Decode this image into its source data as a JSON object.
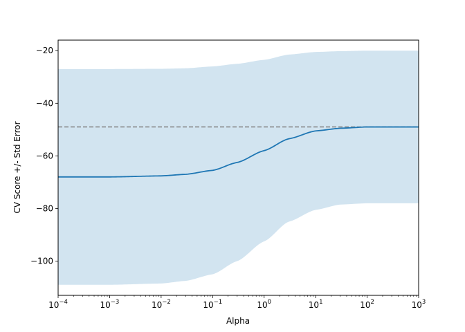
{
  "chart_data": {
    "type": "line",
    "title": "",
    "xlabel": "Alpha",
    "ylabel": "CV Score +/- Std Error",
    "xscale": "log",
    "xlim": [
      0.0001,
      1000
    ],
    "ylim": [
      -113,
      -16
    ],
    "grid": false,
    "x_ticks": [
      {
        "value": 0.0001,
        "base": "10",
        "exp": "−4"
      },
      {
        "value": 0.001,
        "base": "10",
        "exp": "−3"
      },
      {
        "value": 0.01,
        "base": "10",
        "exp": "−2"
      },
      {
        "value": 0.1,
        "base": "10",
        "exp": "−1"
      },
      {
        "value": 1,
        "base": "10",
        "exp": "0"
      },
      {
        "value": 10,
        "base": "10",
        "exp": "1"
      },
      {
        "value": 100,
        "base": "10",
        "exp": "2"
      },
      {
        "value": 1000,
        "base": "10",
        "exp": "3"
      }
    ],
    "y_ticks": [
      {
        "value": -20,
        "label": "−20"
      },
      {
        "value": -40,
        "label": "−40"
      },
      {
        "value": -60,
        "label": "−60"
      },
      {
        "value": -80,
        "label": "−80"
      },
      {
        "value": -100,
        "label": "−100"
      }
    ],
    "series": [
      {
        "role": "mean",
        "color": "#1f77b4",
        "x": [
          0.0001,
          0.001,
          0.01,
          0.03,
          0.1,
          0.3,
          1,
          3,
          10,
          30,
          100,
          1000
        ],
        "y": [
          -68,
          -68,
          -67.6,
          -67,
          -65.5,
          -62.5,
          -58,
          -53.5,
          -50.5,
          -49.5,
          -49,
          -49
        ]
      }
    ],
    "band": {
      "role": "std-error",
      "color": "#1f77b4",
      "opacity": 0.2,
      "x": [
        0.0001,
        0.001,
        0.01,
        0.03,
        0.1,
        0.3,
        1,
        3,
        10,
        30,
        100,
        1000
      ],
      "upper": [
        -27,
        -27,
        -26.9,
        -26.7,
        -26,
        -25,
        -23.5,
        -21.5,
        -20.5,
        -20.2,
        -20,
        -20
      ],
      "lower": [
        -109,
        -109,
        -108.5,
        -107.5,
        -105,
        -100,
        -92.5,
        -85,
        -80.5,
        -78.5,
        -78,
        -78
      ]
    },
    "reference_line": {
      "y": -49,
      "color": "#808080",
      "style": "dashed"
    }
  }
}
